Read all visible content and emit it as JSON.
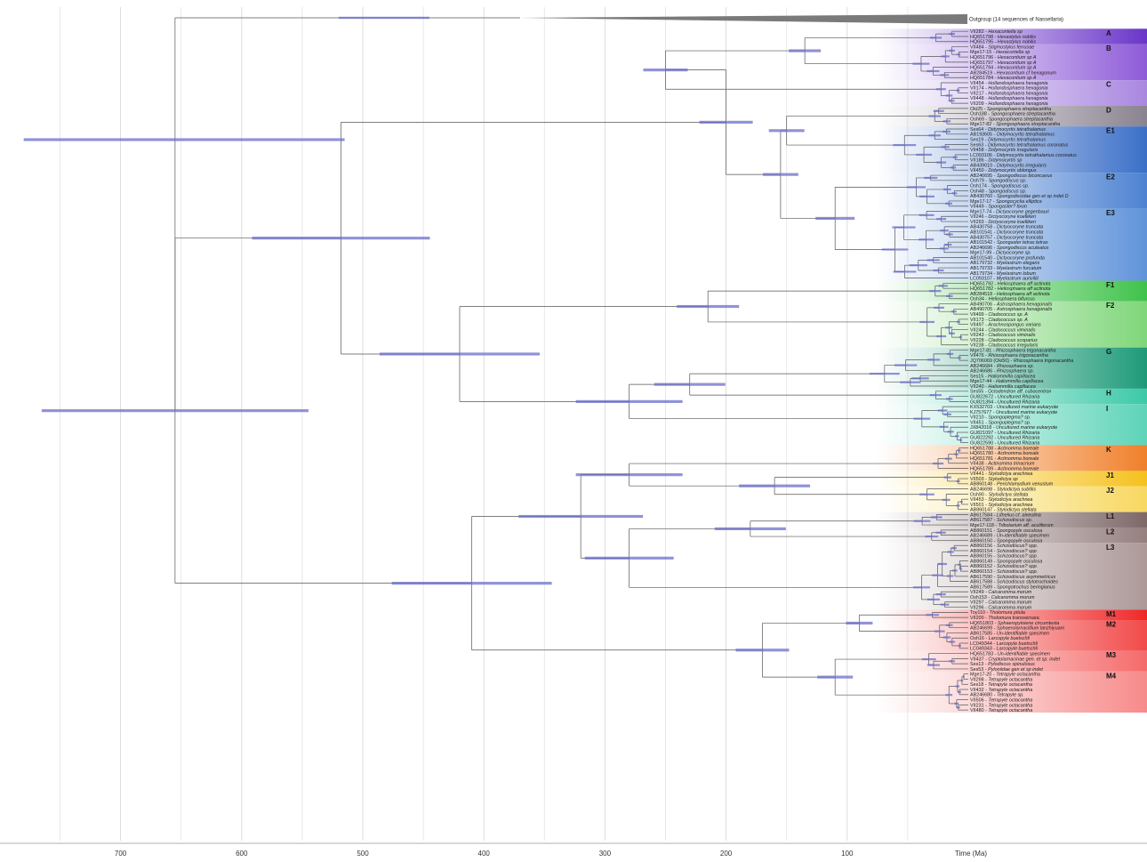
{
  "axis": {
    "ticks": [
      700,
      600,
      500,
      400,
      300,
      200,
      100
    ],
    "title": "Time (Ma)"
  },
  "outgroup": {
    "label": "Outgroup (14 sequences of Nassellaria)"
  },
  "clades": [
    {
      "label": "A",
      "color": "#6a35c9",
      "tips": [
        {
          "id": "VII282",
          "sp": "Hexacontella sp"
        },
        {
          "id": "HQ651798",
          "sp": "Hexastylus nobilis"
        },
        {
          "id": "HQ651795",
          "sp": "Hexastylus nobilis"
        }
      ]
    },
    {
      "label": "B",
      "color": "#8e5bd8",
      "tips": [
        {
          "id": "VII484",
          "sp": "Stigmostylus ferrusae"
        },
        {
          "id": "Mge17-15",
          "sp": "Hexacontella sp"
        },
        {
          "id": "HQ651796",
          "sp": "Hexacontium sp A"
        },
        {
          "id": "HQ651797",
          "sp": "Hexacontium sp A"
        },
        {
          "id": "HQ651794",
          "sp": "Hexacontium sp A"
        },
        {
          "id": "AB284519",
          "sp": "Hexacontium cf hexagonum"
        },
        {
          "id": "HQ651784",
          "sp": "Hexacontium sp A"
        }
      ]
    },
    {
      "label": "C",
      "color": "#a987e0",
      "tips": [
        {
          "id": "VII454",
          "sp": "Hollandosphaera hexagonia"
        },
        {
          "id": "VII174",
          "sp": "Hollandosphaera hexagonia"
        },
        {
          "id": "VII217",
          "sp": "Hollandosphaera hexagonia"
        },
        {
          "id": "VII448",
          "sp": "Hollandosphaera hexagonia"
        },
        {
          "id": "VII209",
          "sp": "Hollandosphaera hexagonia"
        }
      ]
    },
    {
      "label": "D",
      "color": "#8a8390",
      "tips": [
        {
          "id": "Oki25",
          "sp": "Spongosphaera streptacantha"
        },
        {
          "id": "Osh188",
          "sp": "Spongosphaera streptacantha"
        },
        {
          "id": "Osh69",
          "sp": "Spongosphaera streptacantha"
        },
        {
          "id": "Mge17-82",
          "sp": "Spongosphaera streptacantha"
        }
      ]
    },
    {
      "label": "E1",
      "color": "#3b6fc8",
      "tips": [
        {
          "id": "Ses64",
          "sp": "Didymocyrtis tetrathalamus"
        },
        {
          "id": "AB193605",
          "sp": "Didymocyrtis tetrathalamus"
        },
        {
          "id": "Ses19",
          "sp": "Didymocyrtis tetrathalamus"
        },
        {
          "id": "Ses63",
          "sp": "Didymocyrtis tetrathalamus coronatus"
        },
        {
          "id": "VII458",
          "sp": "Didymocyrtis irregularis"
        },
        {
          "id": "LC093106",
          "sp": "Didymocyrtis tetrathalamus coronatus"
        },
        {
          "id": "VII186",
          "sp": "Didymocyrtis sp"
        },
        {
          "id": "AB439010",
          "sp": "Didymocyrtis irregularis"
        },
        {
          "id": "VII450",
          "sp": "Didymocyrtis oblongus"
        }
      ]
    },
    {
      "label": "E2",
      "color": "#4d82d2",
      "tips": [
        {
          "id": "AB246695",
          "sp": "Spongodiscus biconcavus"
        },
        {
          "id": "Osh79",
          "sp": "Spongodiscus sp."
        },
        {
          "id": "Osh174",
          "sp": "Spongodiscus sp."
        },
        {
          "id": "Osh48",
          "sp": "Spongodiscus sp."
        },
        {
          "id": "AB430760",
          "sp": "Spongodiscidae gen et sp indet D"
        },
        {
          "id": "Mge17-17",
          "sp": "Spongocyclia elliptica"
        },
        {
          "id": "VII449",
          "sp": "Spongaster? tixon"
        }
      ]
    },
    {
      "label": "E3",
      "color": "#5f93da",
      "tips": [
        {
          "id": "Mge17-74",
          "sp": "Dictyocoryne gegenbauri"
        },
        {
          "id": "VII246",
          "sp": "Dictyocoryne koellikeri"
        },
        {
          "id": "VII293",
          "sp": "Dictyocoryne koellikeri"
        },
        {
          "id": "AB430758",
          "sp": "Dictyocoryne truncata"
        },
        {
          "id": "AB101541",
          "sp": "Dictyocoryne truncata"
        },
        {
          "id": "AB430757",
          "sp": "Dictyocoryne truncata"
        },
        {
          "id": "AB101542",
          "sp": "Spongaster tetras tetras"
        },
        {
          "id": "AB246696",
          "sp": "Spongodiscus aculeatus"
        },
        {
          "id": "Mge17-99",
          "sp": "Dictyocoryne sp."
        },
        {
          "id": "AB101540",
          "sp": "Dictyocoryne profunda"
        },
        {
          "id": "AB179732",
          "sp": "Myelastrum elegans"
        },
        {
          "id": "AB179733",
          "sp": "Myelastrum furcatum"
        },
        {
          "id": "AB179734",
          "sp": "Myelastrum lobum"
        },
        {
          "id": "LC093107",
          "sp": "Myelastrum aurivillii"
        }
      ]
    },
    {
      "label": "F1",
      "color": "#3fc24a",
      "tips": [
        {
          "id": "HQ651792",
          "sp": "Heliosphaera aff actinota"
        },
        {
          "id": "HQ651782",
          "sp": "Heliosphaera aff actinota"
        },
        {
          "id": "AB284518",
          "sp": "Heliosphaera aff actinota"
        },
        {
          "id": "Osh34",
          "sp": "Heliosphaera bifurcus"
        }
      ]
    },
    {
      "label": "F2",
      "color": "#7fd67a",
      "tips": [
        {
          "id": "AB490706",
          "sp": "Astrosphaera hexagonalis"
        },
        {
          "id": "AB490705",
          "sp": "Astrosphaera hexagonalis"
        },
        {
          "id": "VII499",
          "sp": "Cladococcus sp. A"
        },
        {
          "id": "VII173",
          "sp": "Cladococcus sp. A"
        },
        {
          "id": "VII497",
          "sp": "Arachnospongus varians"
        },
        {
          "id": "VII244",
          "sp": "Cladococcus viminalis"
        },
        {
          "id": "VII243",
          "sp": "Cladococcus viminalis"
        },
        {
          "id": "VII228",
          "sp": "Cladococcus scoparius"
        },
        {
          "id": "VII238",
          "sp": "Cladococcus irregularis"
        }
      ]
    },
    {
      "label": "G",
      "color": "#1e9a78",
      "tips": [
        {
          "id": "Mge17-81",
          "sp": "Rhizosphaera trigonacantha"
        },
        {
          "id": "VII476",
          "sp": "Rhizosphaera trigonacantha"
        },
        {
          "id": "JQ706069 (Oki50)",
          "sp": "Rhizosphaera trigonacantha"
        },
        {
          "id": "AB246684",
          "sp": "Rhizosphaera sp."
        },
        {
          "id": "AB246686",
          "sp": "Rhizosphaera sp."
        },
        {
          "id": "Ses15",
          "sp": "Haliommilla capillacea"
        },
        {
          "id": "Mge17-44",
          "sp": "Haliommilla capillacea"
        },
        {
          "id": "VII240",
          "sp": "Haliommilla capillacea"
        }
      ]
    },
    {
      "label": "H",
      "color": "#3cc9a8",
      "tips": [
        {
          "id": "Ses55",
          "sp": "Octodendron aff. cubocentron"
        },
        {
          "id": "GU822672",
          "sp": "Uncultured Rhizaria"
        },
        {
          "id": "GU821394",
          "sp": "Uncultured Rhizaria"
        }
      ]
    },
    {
      "label": "I",
      "color": "#5dd4b8",
      "tips": [
        {
          "id": "KX532703",
          "sp": "Uncultured marine eukaryote"
        },
        {
          "id": "KJ757677",
          "sp": "Uncultured marine eukaryote"
        },
        {
          "id": "VII210",
          "sp": "Spongoplegma? sp."
        },
        {
          "id": "VII451",
          "sp": "Spongoplegma? sp."
        },
        {
          "id": "JX842018",
          "sp": "Uncultured marine eukaryote"
        },
        {
          "id": "GU821097",
          "sp": "Uncultured Rhizaria"
        },
        {
          "id": "GU822292",
          "sp": "Uncultured Rhizaria"
        },
        {
          "id": "GU822590",
          "sp": "Uncultured Rhizaria"
        }
      ]
    },
    {
      "label": "K",
      "color": "#f07f2a",
      "tips": [
        {
          "id": "HQ651788",
          "sp": "Actinomma boreale"
        },
        {
          "id": "HQ651780",
          "sp": "Actinomma boreale"
        },
        {
          "id": "HQ651781",
          "sp": "Actinomma boreale"
        },
        {
          "id": "VII438",
          "sp": "Actinomma trinacrium"
        },
        {
          "id": "HQ651789",
          "sp": "Actinomma boreale"
        }
      ]
    },
    {
      "label": "J1",
      "color": "#f5c11e",
      "tips": [
        {
          "id": "VII441",
          "sp": "Stylodictya arachnea"
        },
        {
          "id": "VII503",
          "sp": "Stylodictya sp"
        },
        {
          "id": "AB860148",
          "sp": "Perichlamydium venustum"
        }
      ]
    },
    {
      "label": "J2",
      "color": "#f7d860",
      "tips": [
        {
          "id": "AB246698",
          "sp": "Stylodictya subtilis"
        },
        {
          "id": "Osh90",
          "sp": "Stylodictya stellata"
        },
        {
          "id": "VII453",
          "sp": "Stylodictya arachnea"
        },
        {
          "id": "VII501",
          "sp": "Stylodictya arachnea"
        },
        {
          "id": "AB860147",
          "sp": "Stylodictya stellata"
        }
      ]
    },
    {
      "label": "L1",
      "color": "#7d6868",
      "tips": [
        {
          "id": "AB617584",
          "sp": "Lithelius cf. alveolina"
        },
        {
          "id": "AB617587",
          "sp": "Schizodiscus sp."
        },
        {
          "id": "Mge17-118",
          "sp": "Tribolarium aff. aculiferum"
        }
      ]
    },
    {
      "label": "L2",
      "color": "#957f7f",
      "tips": [
        {
          "id": "AB860151",
          "sp": "Spongopyle osculosa"
        },
        {
          "id": "AB246689",
          "sp": "Un-identifiable specimen"
        },
        {
          "id": "AB860150",
          "sp": "Spongopyle osculosa"
        }
      ]
    },
    {
      "label": "L3",
      "color": "#ad9898",
      "tips": [
        {
          "id": "AB860156",
          "sp": "Schizodiscus? spp."
        },
        {
          "id": "AB860154",
          "sp": "Schizodiscus? spp."
        },
        {
          "id": "AB860155",
          "sp": "Schizodiscus? spp."
        },
        {
          "id": "AB860149",
          "sp": "Spongopyle osculosa"
        },
        {
          "id": "AB860152",
          "sp": "Schizodiscus? spp."
        },
        {
          "id": "AB860153",
          "sp": "Schizodiscus? spp."
        },
        {
          "id": "AB617590",
          "sp": "Schizodiscus asymmetricus"
        },
        {
          "id": "AB617588",
          "sp": "Schizodiscus stylotrochoides"
        },
        {
          "id": "AB617589",
          "sp": "Spongotrochus beringianus"
        },
        {
          "id": "VII249",
          "sp": "Calcaromma morum"
        },
        {
          "id": "Osh153",
          "sp": "Calcaromma morum"
        },
        {
          "id": "VII297",
          "sp": "Calcaromma morum"
        },
        {
          "id": "VII296",
          "sp": "Calcaromma morum"
        }
      ]
    },
    {
      "label": "M1",
      "color": "#f02828",
      "tips": [
        {
          "id": "Toy110",
          "sp": "Tholomura pitula"
        },
        {
          "id": "VII200",
          "sp": "Tholomura transversara"
        }
      ]
    },
    {
      "label": "M2",
      "color": "#f24a4a",
      "tips": [
        {
          "id": "HQ651803",
          "sp": "Sphaeropyloiene circumtexta"
        },
        {
          "id": "AB246699",
          "sp": "Sphaerolarnacillium lanzhiyuani"
        },
        {
          "id": "AB617585",
          "sp": "Un-identifiable specimen"
        },
        {
          "id": "Osh16",
          "sp": "Larcopyle buetschli"
        },
        {
          "id": "LC049344",
          "sp": "Larcopyle buetschli"
        },
        {
          "id": "LC049343",
          "sp": "Larcopyle buetschli"
        }
      ]
    },
    {
      "label": "M3",
      "color": "#f56a6a",
      "tips": [
        {
          "id": "HQ651783",
          "sp": "Un-identifiable specimen"
        },
        {
          "id": "VII437",
          "sp": "Cryptolarnacinae gen. et sp. indet"
        },
        {
          "id": "Ses13",
          "sp": "Pylodiscus spinulosus"
        },
        {
          "id": "Ses53",
          "sp": "Pyloniidae gen et sp indet"
        }
      ]
    },
    {
      "label": "M4",
      "color": "#f78a8a",
      "tips": [
        {
          "id": "Mge17-20",
          "sp": "Tetrapyle octacantha"
        },
        {
          "id": "VII298",
          "sp": "Tetrapyle octacantha"
        },
        {
          "id": "Ses18",
          "sp": "Tetrapyle octacantha"
        },
        {
          "id": "VII432",
          "sp": "Tetrapyle octacantha"
        },
        {
          "id": "AB246680",
          "sp": "Tetrapyle sp."
        },
        {
          "id": "VII506",
          "sp": "Tetrapyle octacantha"
        },
        {
          "id": "VII231",
          "sp": "Tetrapyle octacantha"
        },
        {
          "id": "VII480",
          "sp": "Tetrapyle octacantha"
        }
      ]
    }
  ]
}
